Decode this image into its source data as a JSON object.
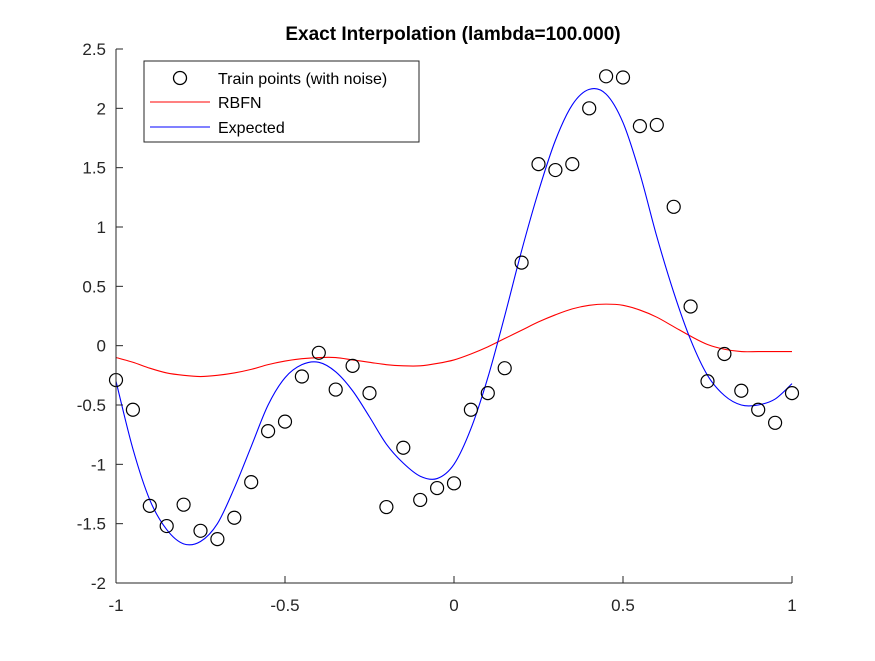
{
  "chart_data": {
    "type": "line",
    "title": "Exact Interpolation (lambda=100.000)",
    "xlabel": "",
    "ylabel": "",
    "xlim": [
      -1,
      1
    ],
    "ylim": [
      -2,
      2.5
    ],
    "xticks": [
      -1,
      -0.5,
      0,
      0.5,
      1
    ],
    "xtick_labels": [
      "-1",
      "-0.5",
      "0",
      "0.5",
      "1"
    ],
    "yticks": [
      -2,
      -1.5,
      -1,
      -0.5,
      0,
      0.5,
      1,
      1.5,
      2,
      2.5
    ],
    "ytick_labels": [
      "-2",
      "-1.5",
      "-1",
      "-0.5",
      "0",
      "0.5",
      "1",
      "1.5",
      "2",
      "2.5"
    ],
    "grid": false,
    "legend_position": "top-left",
    "legend": [
      "Train points (with noise)",
      "RBFN",
      "Expected"
    ],
    "series": [
      {
        "name": "Train points (with noise)",
        "kind": "scatter",
        "marker": "circle",
        "color": "#000000",
        "x": [
          -1,
          -0.95,
          -0.9,
          -0.85,
          -0.8,
          -0.75,
          -0.7,
          -0.65,
          -0.6,
          -0.55,
          -0.5,
          -0.45,
          -0.4,
          -0.35,
          -0.3,
          -0.25,
          -0.2,
          -0.15,
          -0.1,
          -0.05,
          0,
          0.05,
          0.1,
          0.15,
          0.2,
          0.25,
          0.3,
          0.35,
          0.4,
          0.45,
          0.5,
          0.55,
          0.6,
          0.65,
          0.7,
          0.75,
          0.8,
          0.85,
          0.9,
          0.95,
          1
        ],
        "y": [
          -0.29,
          -0.54,
          -1.35,
          -1.52,
          -1.34,
          -1.56,
          -1.63,
          -1.45,
          -1.15,
          -0.72,
          -0.64,
          -0.26,
          -0.06,
          -0.37,
          -0.17,
          -0.4,
          -1.36,
          -0.86,
          -1.3,
          -1.2,
          -1.16,
          -0.54,
          -0.4,
          -0.19,
          0.7,
          1.53,
          1.48,
          1.53,
          2.0,
          2.27,
          2.26,
          1.85,
          1.86,
          1.17,
          0.33,
          -0.3,
          -0.07,
          -0.38,
          -0.54,
          -0.65,
          -0.4
        ]
      },
      {
        "name": "RBFN",
        "kind": "line",
        "color": "#ff0000",
        "x": [
          -1,
          -0.95,
          -0.9,
          -0.85,
          -0.8,
          -0.75,
          -0.7,
          -0.65,
          -0.6,
          -0.55,
          -0.5,
          -0.45,
          -0.4,
          -0.35,
          -0.3,
          -0.25,
          -0.2,
          -0.15,
          -0.1,
          -0.05,
          0,
          0.05,
          0.1,
          0.15,
          0.2,
          0.25,
          0.3,
          0.35,
          0.4,
          0.45,
          0.5,
          0.55,
          0.6,
          0.65,
          0.7,
          0.75,
          0.8,
          0.85,
          0.9,
          0.95,
          1
        ],
        "y": [
          -0.1,
          -0.14,
          -0.19,
          -0.23,
          -0.25,
          -0.26,
          -0.25,
          -0.23,
          -0.2,
          -0.16,
          -0.13,
          -0.11,
          -0.1,
          -0.1,
          -0.12,
          -0.14,
          -0.16,
          -0.17,
          -0.17,
          -0.15,
          -0.12,
          -0.07,
          -0.01,
          0.06,
          0.13,
          0.2,
          0.26,
          0.31,
          0.34,
          0.35,
          0.34,
          0.3,
          0.24,
          0.16,
          0.08,
          0.01,
          -0.03,
          -0.05,
          -0.05,
          -0.05,
          -0.05
        ]
      },
      {
        "name": "Expected",
        "kind": "line",
        "color": "#0000ff",
        "x": [
          -1,
          -0.95,
          -0.9,
          -0.85,
          -0.8,
          -0.75,
          -0.7,
          -0.65,
          -0.6,
          -0.55,
          -0.5,
          -0.45,
          -0.4,
          -0.35,
          -0.3,
          -0.25,
          -0.2,
          -0.15,
          -0.1,
          -0.05,
          0,
          0.05,
          0.1,
          0.15,
          0.2,
          0.25,
          0.3,
          0.35,
          0.4,
          0.45,
          0.5,
          0.55,
          0.6,
          0.65,
          0.7,
          0.75,
          0.8,
          0.85,
          0.9,
          0.95,
          1
        ],
        "y": [
          -0.3,
          -0.87,
          -1.3,
          -1.55,
          -1.67,
          -1.65,
          -1.5,
          -1.2,
          -0.85,
          -0.5,
          -0.27,
          -0.16,
          -0.14,
          -0.22,
          -0.38,
          -0.6,
          -0.83,
          -0.99,
          -1.1,
          -1.12,
          -1.0,
          -0.7,
          -0.27,
          0.25,
          0.8,
          1.3,
          1.73,
          2.03,
          2.16,
          2.12,
          1.88,
          1.45,
          0.92,
          0.45,
          0.05,
          -0.25,
          -0.42,
          -0.5,
          -0.5,
          -0.45,
          -0.32
        ]
      }
    ]
  }
}
